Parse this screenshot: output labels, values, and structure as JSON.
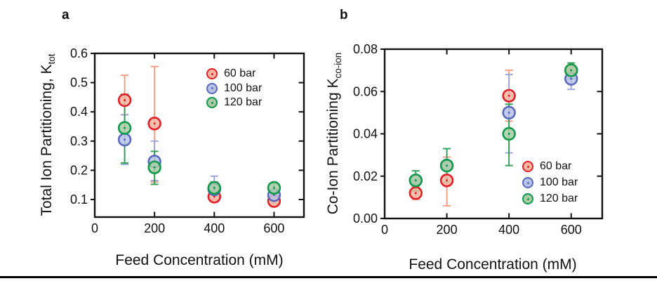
{
  "figure": {
    "panels": [
      {
        "letter": "a"
      },
      {
        "letter": "b"
      }
    ],
    "divider_color": "#000000"
  },
  "chart_data": [
    {
      "panel": "a",
      "type": "scatter",
      "xlabel": "Feed Concentration (mM)",
      "ylabel_base": "Total Ion Partitioning, K",
      "ylabel_sub": "tot",
      "xlim": [
        0,
        700
      ],
      "ylim": [
        0.04,
        0.6
      ],
      "xticks": [
        0,
        200,
        400,
        600
      ],
      "xticklabels": [
        "0",
        "200",
        "400",
        "600"
      ],
      "yticks": [
        0.1,
        0.2,
        0.3,
        0.4,
        0.5,
        0.6
      ],
      "yticklabels": [
        "0.1",
        "0.2",
        "0.3",
        "0.4",
        "0.5",
        "0.6"
      ],
      "grid": false,
      "legend_position": "upper-right",
      "x": [
        100,
        200,
        400,
        600
      ],
      "series": [
        {
          "name": "60 bar",
          "color": "#e31f26",
          "fill": "#f4b5a2",
          "err_color": "#f39b80",
          "values": [
            0.44,
            0.36,
            0.11,
            0.095
          ],
          "err_lo": [
            0.39,
            0.16,
            0.1,
            0.085
          ],
          "err_hi": [
            0.525,
            0.555,
            0.125,
            0.105
          ]
        },
        {
          "name": "100 bar",
          "color": "#5a69bd",
          "fill": "#bac1e7",
          "err_color": "#9aa4da",
          "values": [
            0.305,
            0.23,
            0.135,
            0.115
          ],
          "err_lo": [
            0.22,
            0.165,
            0.115,
            0.1
          ],
          "err_hi": [
            0.39,
            0.3,
            0.18,
            0.13
          ]
        },
        {
          "name": "120 bar",
          "color": "#109a4a",
          "fill": "#a9cca6",
          "err_color": "#2f9e57",
          "values": [
            0.345,
            0.21,
            0.14,
            0.14
          ],
          "err_lo": [
            0.225,
            0.152,
            0.12,
            0.12
          ],
          "err_hi": [
            0.46,
            0.265,
            0.16,
            0.155
          ]
        }
      ]
    },
    {
      "panel": "b",
      "type": "scatter",
      "xlabel": "Feed Concentration (mM)",
      "ylabel_base": "Co-Ion Partitioning K",
      "ylabel_sub": "co-ion",
      "xlim": [
        0,
        700
      ],
      "ylim": [
        0,
        0.08
      ],
      "xticks": [
        0,
        200,
        400,
        600
      ],
      "xticklabels": [
        "0",
        "200",
        "400",
        "600"
      ],
      "yticks": [
        0,
        0.02,
        0.04,
        0.06,
        0.08
      ],
      "yticklabels": [
        "0.00",
        "0.02",
        "0.04",
        "0.06",
        "0.08"
      ],
      "grid": false,
      "legend_position": "lower-right",
      "x": [
        100,
        200,
        400,
        600
      ],
      "series": [
        {
          "name": "60 bar",
          "color": "#e31f26",
          "fill": "#f4b5a2",
          "err_color": "#f39b80",
          "values": [
            0.012,
            0.018,
            0.058,
            0.07
          ],
          "err_lo": [
            0.009,
            0.006,
            0.046,
            0.07
          ],
          "err_hi": [
            0.015,
            0.029,
            0.07,
            0.07
          ]
        },
        {
          "name": "100 bar",
          "color": "#5a69bd",
          "fill": "#bac1e7",
          "err_color": "#9aa4da",
          "values": [
            0.018,
            0.025,
            0.05,
            0.066
          ],
          "err_lo": [
            0.018,
            0.025,
            0.031,
            0.061
          ],
          "err_hi": [
            0.018,
            0.025,
            0.068,
            0.072
          ]
        },
        {
          "name": "120 bar",
          "color": "#109a4a",
          "fill": "#a9cca6",
          "err_color": "#2f9e57",
          "values": [
            0.018,
            0.025,
            0.04,
            0.07
          ],
          "err_lo": [
            0.013,
            0.017,
            0.025,
            0.066
          ],
          "err_hi": [
            0.0225,
            0.033,
            0.054,
            0.0735
          ]
        }
      ]
    }
  ]
}
